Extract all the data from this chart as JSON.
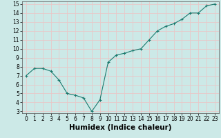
{
  "x": [
    0,
    1,
    2,
    3,
    4,
    5,
    6,
    7,
    8,
    9,
    10,
    11,
    12,
    13,
    14,
    15,
    16,
    17,
    18,
    19,
    20,
    21,
    22,
    23
  ],
  "y": [
    7.0,
    7.8,
    7.8,
    7.5,
    6.5,
    5.0,
    4.8,
    4.5,
    3.0,
    4.3,
    8.5,
    9.3,
    9.5,
    9.8,
    10.0,
    11.0,
    12.0,
    12.5,
    12.8,
    13.3,
    14.0,
    14.0,
    14.8,
    15.0
  ],
  "xlabel": "Humidex (Indice chaleur)",
  "xlim": [
    -0.5,
    23.5
  ],
  "ylim": [
    2.8,
    15.3
  ],
  "yticks": [
    3,
    4,
    5,
    6,
    7,
    8,
    9,
    10,
    11,
    12,
    13,
    14,
    15
  ],
  "xticks": [
    0,
    1,
    2,
    3,
    4,
    5,
    6,
    7,
    8,
    9,
    10,
    11,
    12,
    13,
    14,
    15,
    16,
    17,
    18,
    19,
    20,
    21,
    22,
    23
  ],
  "line_color": "#1a7a6e",
  "marker": "+",
  "bg_color": "#cce9e7",
  "grid_color": "#e8c8c8",
  "tick_label_fontsize": 5.5,
  "xlabel_fontsize": 7.5
}
